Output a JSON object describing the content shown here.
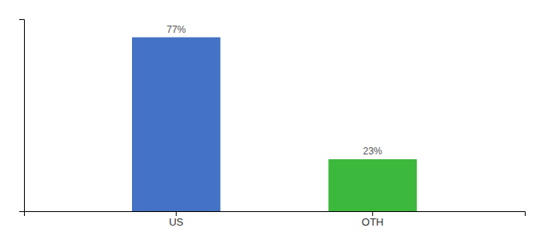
{
  "chart_data": {
    "type": "bar",
    "categories": [
      "US",
      "OTH"
    ],
    "values": [
      77,
      23
    ],
    "value_labels": [
      "77%",
      "23%"
    ],
    "colors": [
      "#4472c4",
      "#3cb83c"
    ],
    "ylim": [
      0,
      85
    ],
    "grid": false,
    "data_labels": true,
    "tick_labels": "x"
  }
}
